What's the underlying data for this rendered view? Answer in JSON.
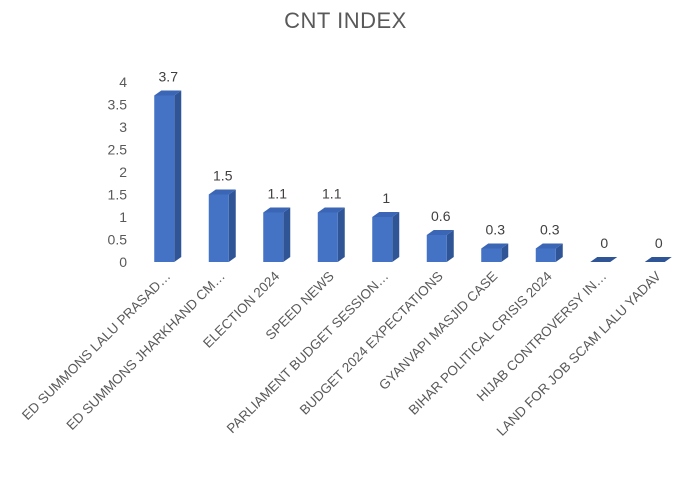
{
  "chart_data": {
    "type": "bar",
    "title": "CNT INDEX",
    "xlabel": "",
    "ylabel": "",
    "ylim": [
      0,
      4
    ],
    "yticks": [
      "0",
      "0.5",
      "1",
      "1.5",
      "2",
      "2.5",
      "3",
      "3.5",
      "4"
    ],
    "grid": false,
    "legend": "none",
    "bar_color": "#4472C4",
    "categories": [
      "ED SUMMONS LALU PRASAD…",
      "ED SUMMONS JHARKHAND CM…",
      "ELECTION 2024",
      "SPEED NEWS",
      "PARLIAMENT BUDGET SESSION…",
      "BUDGET 2024 EXPECTATIONS",
      "GYANVAPI MASJID CASE",
      "BIHAR POLITICAL CRISIS 2024",
      "HIJAB CONTROVERSY IN…",
      "LAND FOR JOB SCAM LALU YADAV"
    ],
    "values": [
      3.7,
      1.5,
      1.1,
      1.1,
      1,
      0.6,
      0.3,
      0.3,
      0,
      0
    ],
    "value_labels": [
      "3.7",
      "1.5",
      "1.1",
      "1.1",
      "1",
      "0.6",
      "0.3",
      "0.3",
      "0",
      "0"
    ]
  }
}
